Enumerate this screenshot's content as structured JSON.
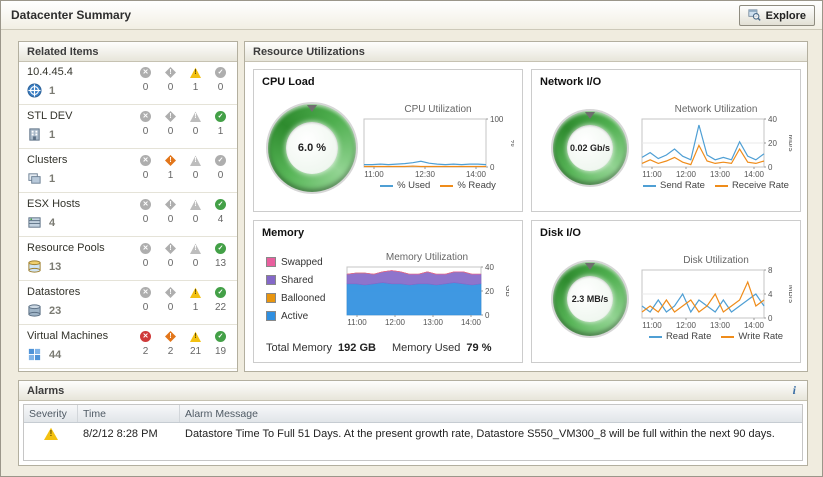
{
  "header": {
    "title": "Datacenter Summary",
    "explore": "Explore"
  },
  "related_items": {
    "title": "Related Items",
    "items": [
      {
        "label": "10.4.45.4",
        "icon": "vcenter-icon",
        "count": 1,
        "fatal": 0,
        "critical": 0,
        "warning": 1,
        "normal": 0
      },
      {
        "label": "STL DEV",
        "icon": "datacenter-icon",
        "count": 1,
        "fatal": 0,
        "critical": 0,
        "warning": 0,
        "normal": 1
      },
      {
        "label": "Clusters",
        "icon": "cluster-icon",
        "count": 1,
        "fatal": 0,
        "critical": 1,
        "warning": 0,
        "normal": 0
      },
      {
        "label": "ESX Hosts",
        "icon": "host-icon",
        "count": 4,
        "fatal": 0,
        "critical": 0,
        "warning": 0,
        "normal": 4
      },
      {
        "label": "Resource Pools",
        "icon": "resource-pool-icon",
        "count": 13,
        "fatal": 0,
        "critical": 0,
        "warning": 0,
        "normal": 13
      },
      {
        "label": "Datastores",
        "icon": "datastore-icon",
        "count": 23,
        "fatal": 0,
        "critical": 0,
        "warning": 1,
        "normal": 22
      },
      {
        "label": "Virtual Machines",
        "icon": "vm-icon",
        "count": 44,
        "fatal": 2,
        "critical": 2,
        "warning": 21,
        "normal": 19
      }
    ]
  },
  "resource_utilizations": {
    "title": "Resource Utilizations",
    "cpu": {
      "title": "CPU Load",
      "gauge_value": "6.0 %"
    },
    "network": {
      "title": "Network I/O",
      "gauge_value": "0.02 Gb/s"
    },
    "memory": {
      "title": "Memory",
      "total_memory_label": "Total Memory",
      "total_memory_value": "192 GB",
      "memory_used_label": "Memory Used",
      "memory_used_value": "79 %"
    },
    "disk": {
      "title": "Disk I/O",
      "gauge_value": "2.3 MB/s"
    }
  },
  "alarms": {
    "title": "Alarms",
    "info_icon": "i",
    "columns": [
      "Severity",
      "Time",
      "Alarm Message"
    ],
    "rows": [
      {
        "severity": "warning",
        "time": "8/2/12 8:28 PM",
        "message": "Datastore Time To Full 51 Days. At the present growth rate, Datastore S550_VM300_8 will be full within the next 90 days."
      }
    ]
  },
  "status_colors": {
    "fatal": "#cf3a3a",
    "critical": "#e2761b",
    "warning": "#f3c111",
    "normal": "#43a047"
  },
  "chart_data": [
    {
      "title": "CPU Utilization",
      "type": "line",
      "unit": "%",
      "ylim": [
        0,
        100
      ],
      "yticks": [
        0,
        100
      ],
      "x_labels": [
        "11:00",
        "12:30",
        "14:00"
      ],
      "series": [
        {
          "name": "% Used",
          "color": "#4f9fd4",
          "values": [
            5,
            5,
            6,
            5,
            6,
            7,
            9,
            12,
            8,
            6,
            5,
            6,
            5,
            6,
            6,
            5
          ]
        },
        {
          "name": "% Ready",
          "color": "#ef8c1a",
          "values": [
            1,
            1,
            1,
            1,
            1,
            1,
            2,
            1,
            1,
            1,
            1,
            1,
            1,
            1,
            1,
            1
          ]
        }
      ],
      "legend": [
        {
          "label": "% Used",
          "color": "#4f9fd4"
        },
        {
          "label": "% Ready",
          "color": "#ef8c1a"
        }
      ]
    },
    {
      "title": "Network Utilization",
      "type": "line",
      "unit": "Mb/s",
      "ylim": [
        0,
        40
      ],
      "yticks": [
        0,
        20,
        40
      ],
      "x_labels": [
        "11:00",
        "12:00",
        "13:00",
        "14:00"
      ],
      "series": [
        {
          "name": "Send Rate",
          "color": "#4f9fd4",
          "values": [
            8,
            12,
            7,
            10,
            15,
            9,
            6,
            35,
            10,
            6,
            8,
            6,
            21,
            9,
            6,
            11
          ]
        },
        {
          "name": "Receive Rate",
          "color": "#ef8c1a",
          "values": [
            3,
            6,
            3,
            5,
            8,
            4,
            2,
            18,
            5,
            3,
            4,
            3,
            15,
            4,
            3,
            5
          ]
        }
      ],
      "legend": [
        {
          "label": "Send Rate",
          "color": "#4f9fd4"
        },
        {
          "label": "Receive Rate",
          "color": "#ef8c1a"
        }
      ]
    },
    {
      "title": "Memory Utilization",
      "type": "stacked-area",
      "unit": "GB",
      "ylim": [
        0,
        40
      ],
      "yticks": [
        0,
        20,
        40
      ],
      "x_labels": [
        "11:00",
        "12:00",
        "13:00",
        "14:00"
      ],
      "series": [
        {
          "name": "Active",
          "color": "#2f8fe0",
          "values": [
            26,
            26,
            25,
            26,
            27,
            26,
            26,
            25,
            26,
            26,
            25,
            26,
            27,
            26,
            25,
            26
          ]
        },
        {
          "name": "Shared",
          "color": "#8468c8",
          "values": [
            8,
            9,
            10,
            8,
            9,
            11,
            10,
            9,
            8,
            10,
            9,
            8,
            9,
            10,
            9,
            8
          ]
        },
        {
          "name": "Ballooned",
          "color": "#e8950f",
          "values": [
            0,
            0,
            0,
            0,
            0,
            0,
            0,
            0,
            0,
            0,
            0,
            0,
            0,
            0,
            0,
            0
          ]
        },
        {
          "name": "Swapped",
          "color": "#e85f9e",
          "values": [
            0,
            0,
            0,
            0,
            0,
            0,
            0,
            0,
            0,
            0,
            0,
            0,
            0,
            0,
            0,
            0
          ]
        }
      ],
      "legend": [
        {
          "label": "Swapped",
          "color": "#e85f9e"
        },
        {
          "label": "Shared",
          "color": "#8468c8"
        },
        {
          "label": "Ballooned",
          "color": "#e8950f"
        },
        {
          "label": "Active",
          "color": "#2f8fe0"
        }
      ],
      "footer": {
        "total_memory": "192 GB",
        "memory_used": "79 %"
      }
    },
    {
      "title": "Disk Utilization",
      "type": "line",
      "unit": "MB/s",
      "ylim": [
        0,
        8
      ],
      "yticks": [
        0,
        4,
        8
      ],
      "x_labels": [
        "11:00",
        "12:00",
        "13:00",
        "14:00"
      ],
      "series": [
        {
          "name": "Read Rate",
          "color": "#4f9fd4",
          "values": [
            2,
            1,
            3,
            1,
            2,
            4,
            1,
            3,
            2,
            1,
            3,
            1,
            2,
            3,
            4,
            2
          ]
        },
        {
          "name": "Write Rate",
          "color": "#ef8c1a",
          "values": [
            1,
            2,
            1,
            3,
            1,
            2,
            3,
            1,
            2,
            4,
            1,
            2,
            3,
            6,
            2,
            3
          ]
        }
      ],
      "legend": [
        {
          "label": "Read Rate",
          "color": "#4f9fd4"
        },
        {
          "label": "Write Rate",
          "color": "#ef8c1a"
        }
      ]
    }
  ]
}
